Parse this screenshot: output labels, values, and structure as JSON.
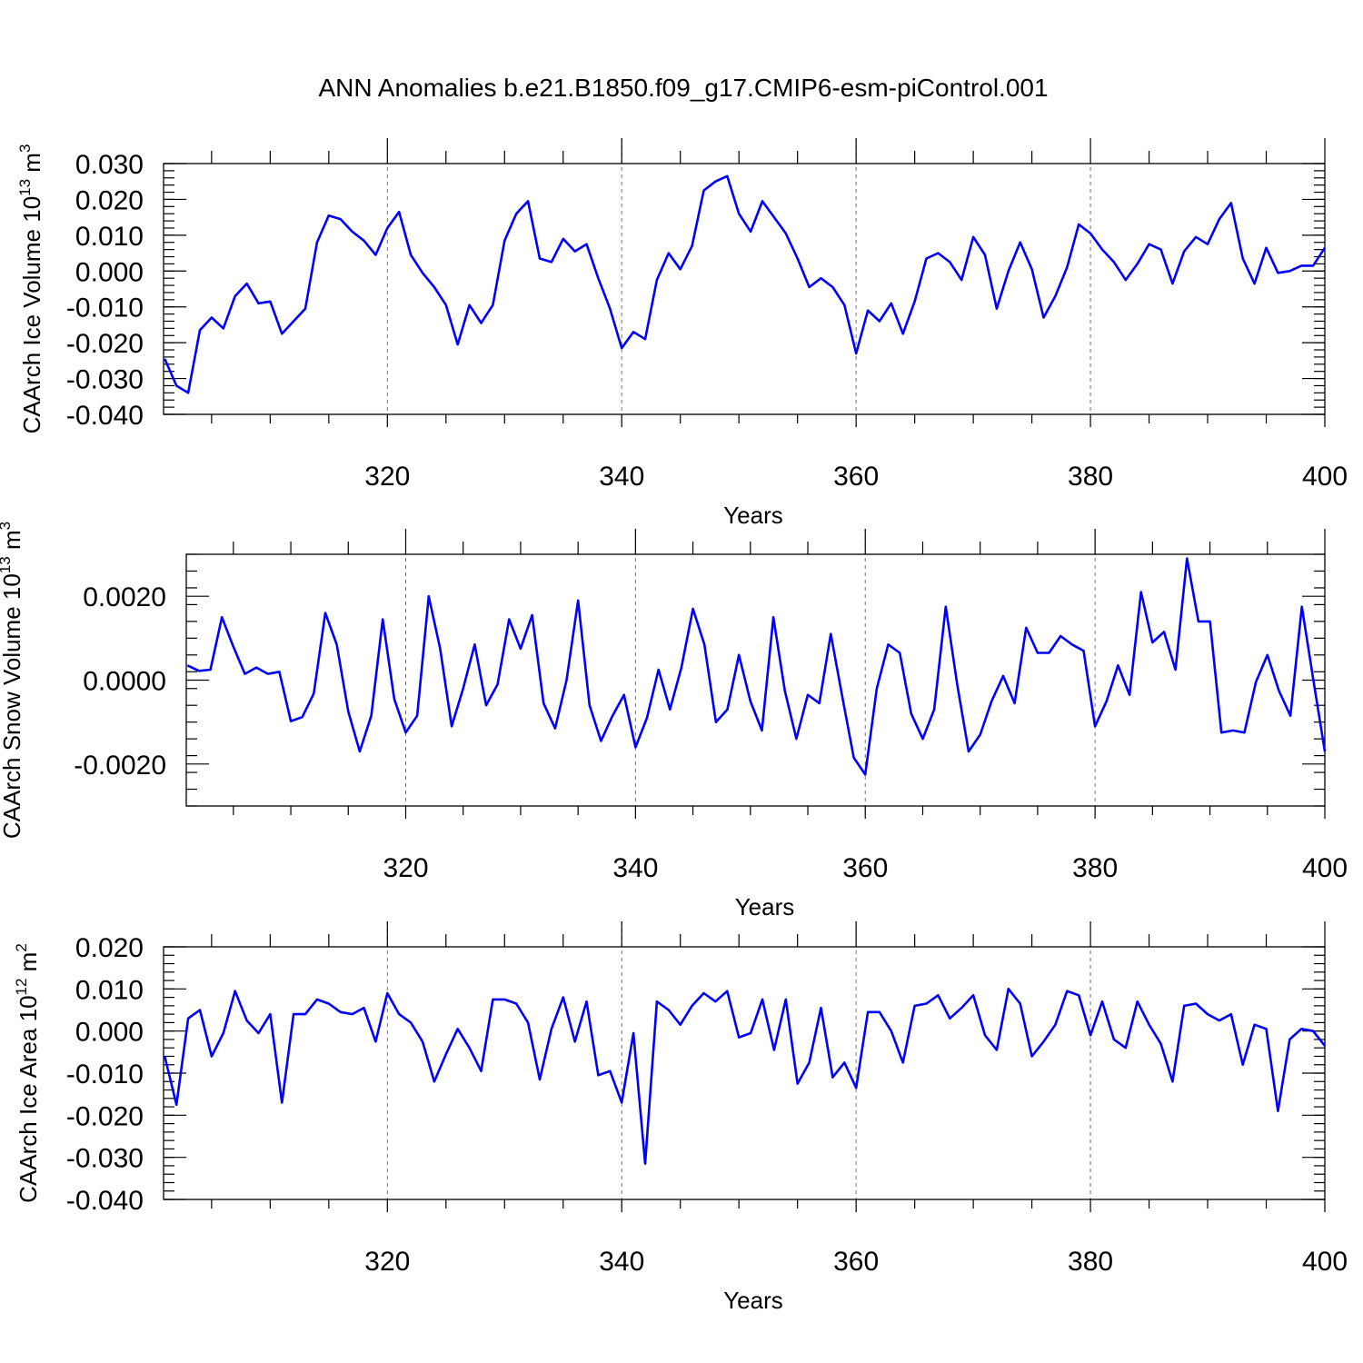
{
  "title": "ANN Anomalies b.e21.B1850.f09_g17.CMIP6-esm-piControl.001",
  "colors": {
    "line": "#0000ff",
    "axis": "#000000",
    "grid": "#777777"
  },
  "chart_data": [
    {
      "type": "line",
      "xlabel": "Years",
      "ylabel_main": "CAArch Ice Volume 10",
      "ylabel_exp": "13",
      "ylabel_unit": " m",
      "ylabel_unit_exp": "3",
      "xlim": [
        301,
        400
      ],
      "ylim": [
        -0.04,
        0.03
      ],
      "xticks": [
        320,
        340,
        360,
        380,
        400
      ],
      "xtick_labels": [
        "320",
        "340",
        "360",
        "380",
        "400"
      ],
      "yticks": [
        -0.04,
        -0.03,
        -0.02,
        -0.01,
        0.0,
        0.01,
        0.02,
        0.03
      ],
      "ytick_labels": [
        "-0.040",
        "-0.030",
        "-0.020",
        "-0.010",
        "0.000",
        "0.010",
        "0.020",
        "0.030"
      ],
      "grid": "dashed vertical lines at 320, 340, 360, 380",
      "x_start": 301,
      "values": [
        -0.0245,
        -0.032,
        -0.034,
        -0.0165,
        -0.013,
        -0.016,
        -0.007,
        -0.0035,
        -0.009,
        -0.0085,
        -0.0175,
        -0.014,
        -0.0105,
        0.008,
        0.0155,
        0.0145,
        0.011,
        0.0085,
        0.0045,
        0.012,
        0.0165,
        0.0045,
        -0.0005,
        -0.0045,
        -0.0095,
        -0.0205,
        -0.0095,
        -0.0145,
        -0.0095,
        0.0085,
        0.016,
        0.0195,
        0.0035,
        0.0025,
        0.009,
        0.0055,
        0.0075,
        -0.002,
        -0.0105,
        -0.0215,
        -0.017,
        -0.019,
        -0.0025,
        0.005,
        0.0005,
        0.007,
        0.0225,
        0.025,
        0.0265,
        0.016,
        0.011,
        0.0195,
        0.015,
        0.0105,
        0.0035,
        -0.0045,
        -0.002,
        -0.0045,
        -0.0095,
        -0.023,
        -0.011,
        -0.014,
        -0.009,
        -0.0175,
        -0.0085,
        0.0035,
        0.005,
        0.0025,
        -0.0025,
        0.0095,
        0.0045,
        -0.0105,
        0.0,
        0.008,
        0.0005,
        -0.013,
        -0.007,
        0.001,
        0.013,
        0.0105,
        0.006,
        0.0025,
        -0.0025,
        0.002,
        0.0075,
        0.006,
        -0.0035,
        0.0055,
        0.0095,
        0.0075,
        0.0145,
        0.019,
        0.0035,
        -0.0035,
        0.0065,
        -0.0005,
        0.0,
        0.0015,
        0.0015,
        0.0065
      ]
    },
    {
      "type": "line",
      "xlabel": "Years",
      "ylabel_main": "CAArch Snow Volume 10",
      "ylabel_exp": "13",
      "ylabel_unit": " m",
      "ylabel_unit_exp": "3",
      "xlim": [
        301,
        400
      ],
      "ylim": [
        -0.003,
        0.003
      ],
      "xticks": [
        320,
        340,
        360,
        380,
        400
      ],
      "xtick_labels": [
        "320",
        "340",
        "360",
        "380",
        "400"
      ],
      "yticks": [
        -0.002,
        0.0,
        0.002
      ],
      "ytick_labels": [
        "-0.0020",
        "0.0000",
        "0.0020"
      ],
      "grid": "dashed vertical lines at 320, 340, 360, 380",
      "x_start": 301,
      "values": [
        0.00035,
        0.00022,
        0.00025,
        0.0015,
        0.0008,
        0.00015,
        0.0003,
        0.00015,
        0.0002,
        -0.00098,
        -0.00088,
        -0.00032,
        0.0016,
        0.00085,
        -0.00075,
        -0.0017,
        -0.00085,
        0.00145,
        -0.00045,
        -0.00125,
        -0.00085,
        0.002,
        0.00075,
        -0.0011,
        -0.0002,
        0.00085,
        -0.0006,
        -0.0001,
        0.00145,
        0.00075,
        0.00155,
        -0.00055,
        -0.00115,
        0.0,
        0.0019,
        -0.0006,
        -0.00145,
        -0.00085,
        -0.00035,
        -0.0016,
        -0.0009,
        0.00025,
        -0.0007,
        0.0003,
        0.0017,
        0.00085,
        -0.001,
        -0.0007,
        0.0006,
        -0.0005,
        -0.0012,
        0.0015,
        -0.00025,
        -0.0014,
        -0.00035,
        -0.00055,
        0.0011,
        -0.0004,
        -0.00185,
        -0.00225,
        -0.0002,
        0.00085,
        0.00065,
        -0.0008,
        -0.0014,
        -0.0007,
        0.00175,
        -0.0001,
        -0.0017,
        -0.0013,
        -0.0005,
        0.0001,
        -0.00055,
        0.00125,
        0.00065,
        0.00065,
        0.00105,
        0.00085,
        0.0007,
        -0.0011,
        -0.0005,
        0.00035,
        -0.00035,
        0.0021,
        0.0009,
        0.00115,
        0.00025,
        0.0029,
        0.0014,
        0.0014,
        -0.00125,
        -0.0012,
        -0.00125,
        -5e-05,
        0.0006,
        -0.00025,
        -0.00085,
        0.00175,
        0.0,
        -0.0017
      ]
    },
    {
      "type": "line",
      "xlabel": "Years",
      "ylabel_main": "CAArch Ice Area 10",
      "ylabel_exp": "12",
      "ylabel_unit": " m",
      "ylabel_unit_exp": "2",
      "xlim": [
        301,
        400
      ],
      "ylim": [
        -0.04,
        0.02
      ],
      "xticks": [
        320,
        340,
        360,
        380,
        400
      ],
      "xtick_labels": [
        "320",
        "340",
        "360",
        "380",
        "400"
      ],
      "yticks": [
        -0.04,
        -0.03,
        -0.02,
        -0.01,
        0.0,
        0.01,
        0.02
      ],
      "ytick_labels": [
        "-0.040",
        "-0.030",
        "-0.020",
        "-0.010",
        "0.000",
        "0.010",
        "0.020"
      ],
      "grid": "dashed vertical lines at 320, 340, 360, 380",
      "x_start": 301,
      "values": [
        -0.006,
        -0.0175,
        0.003,
        0.005,
        -0.006,
        -0.0005,
        0.0095,
        0.0025,
        -0.0005,
        0.004,
        -0.017,
        0.004,
        0.004,
        0.0075,
        0.0065,
        0.0045,
        0.004,
        0.0055,
        -0.0025,
        0.009,
        0.004,
        0.002,
        -0.0025,
        -0.012,
        -0.0055,
        0.0005,
        -0.004,
        -0.0095,
        0.0075,
        0.0075,
        0.0065,
        0.002,
        -0.0115,
        0.0005,
        0.008,
        -0.0025,
        0.007,
        -0.0105,
        -0.0095,
        -0.017,
        -0.0005,
        -0.0315,
        0.007,
        0.005,
        0.0015,
        0.006,
        0.009,
        0.007,
        0.0095,
        -0.0015,
        -0.0005,
        0.0075,
        -0.0045,
        0.0075,
        -0.0125,
        -0.0075,
        0.0055,
        -0.011,
        -0.0075,
        -0.0135,
        0.0045,
        0.0045,
        0.0,
        -0.0075,
        0.006,
        0.0065,
        0.0085,
        0.003,
        0.0055,
        0.0085,
        -0.001,
        -0.0045,
        0.01,
        0.0065,
        -0.006,
        -0.0025,
        0.0015,
        0.0095,
        0.0085,
        -0.001,
        0.007,
        -0.002,
        -0.004,
        0.007,
        0.0015,
        -0.003,
        -0.012,
        0.006,
        0.0065,
        0.004,
        0.0025,
        0.004,
        -0.008,
        0.0015,
        0.0005,
        -0.019,
        -0.002,
        0.0005,
        0.0,
        -0.0035
      ]
    }
  ]
}
